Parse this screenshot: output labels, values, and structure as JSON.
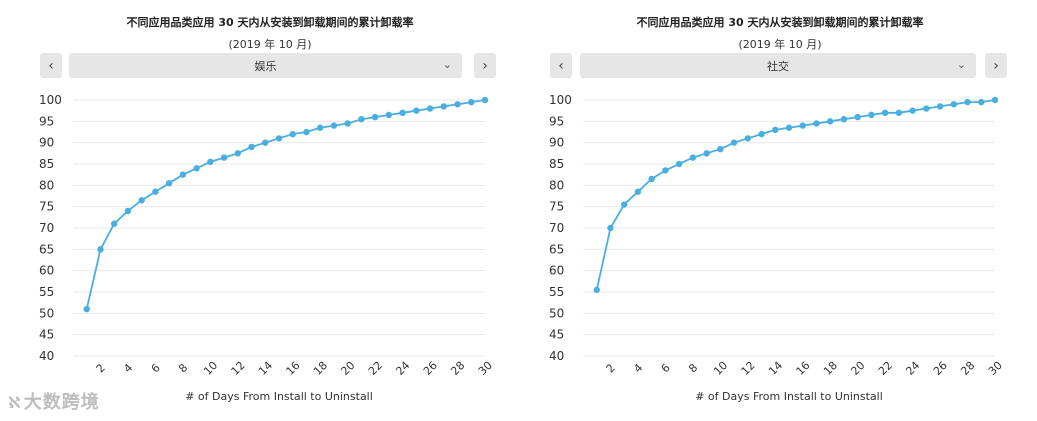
{
  "watermark": {
    "text": "大数跨境",
    "icon": "ampersand-swirl-icon"
  },
  "panels": [
    {
      "title": "不同应用品类应用 30 天内从安装到卸载期间的累计卸载率",
      "subtitle": "(2019 年 10 月)",
      "prev_label": "‹",
      "next_label": "›",
      "category_value": "娱乐"
    },
    {
      "title": "不同应用品类应用 30 天内从安装到卸载期间的累计卸载率",
      "subtitle": "(2019 年 10 月)",
      "prev_label": "‹",
      "next_label": "›",
      "category_value": "社交"
    }
  ],
  "chart_data": [
    {
      "type": "line",
      "title": "不同应用品类应用 30 天内从安装到卸载期间的累计卸载率",
      "subtitle": "(2019 年 10 月)",
      "xlabel": "# of Days From Install to Uninstall",
      "ylabel": "",
      "ylim": [
        40,
        100
      ],
      "yticks": [
        40,
        45,
        50,
        55,
        60,
        65,
        70,
        75,
        80,
        85,
        90,
        95,
        100
      ],
      "xticks": [
        2,
        4,
        6,
        8,
        10,
        12,
        14,
        16,
        18,
        20,
        22,
        24,
        26,
        28,
        30
      ],
      "xlim": [
        0,
        30
      ],
      "grid": true,
      "color": "#4aaee0",
      "x": [
        1,
        2,
        3,
        4,
        5,
        6,
        7,
        8,
        9,
        10,
        11,
        12,
        13,
        14,
        15,
        16,
        17,
        18,
        19,
        20,
        21,
        22,
        23,
        24,
        25,
        26,
        27,
        28,
        29,
        30
      ],
      "values": [
        51,
        65,
        71,
        74,
        76.5,
        78.5,
        80.5,
        82.5,
        84,
        85.5,
        86.5,
        87.5,
        89,
        90,
        91,
        92,
        92.5,
        93.5,
        94,
        94.5,
        95.5,
        96,
        96.5,
        97,
        97.5,
        98,
        98.5,
        99,
        99.5,
        100
      ]
    },
    {
      "type": "line",
      "title": "不同应用品类应用 30 天内从安装到卸载期间的累计卸载率",
      "subtitle": "(2019 年 10 月)",
      "xlabel": "# of Days From Install to Uninstall",
      "ylabel": "",
      "ylim": [
        40,
        100
      ],
      "yticks": [
        40,
        45,
        50,
        55,
        60,
        65,
        70,
        75,
        80,
        85,
        90,
        95,
        100
      ],
      "xticks": [
        2,
        4,
        6,
        8,
        10,
        12,
        14,
        16,
        18,
        20,
        22,
        24,
        26,
        28,
        30
      ],
      "xlim": [
        0,
        30
      ],
      "grid": true,
      "color": "#4aaee0",
      "x": [
        1,
        2,
        3,
        4,
        5,
        6,
        7,
        8,
        9,
        10,
        11,
        12,
        13,
        14,
        15,
        16,
        17,
        18,
        19,
        20,
        21,
        22,
        23,
        24,
        25,
        26,
        27,
        28,
        29,
        30
      ],
      "values": [
        55.5,
        70,
        75.5,
        78.5,
        81.5,
        83.5,
        85,
        86.5,
        87.5,
        88.5,
        90,
        91,
        92,
        93,
        93.5,
        94,
        94.5,
        95,
        95.5,
        96,
        96.5,
        97,
        97,
        97.5,
        98,
        98.5,
        99,
        99.5,
        99.5,
        100
      ]
    }
  ]
}
